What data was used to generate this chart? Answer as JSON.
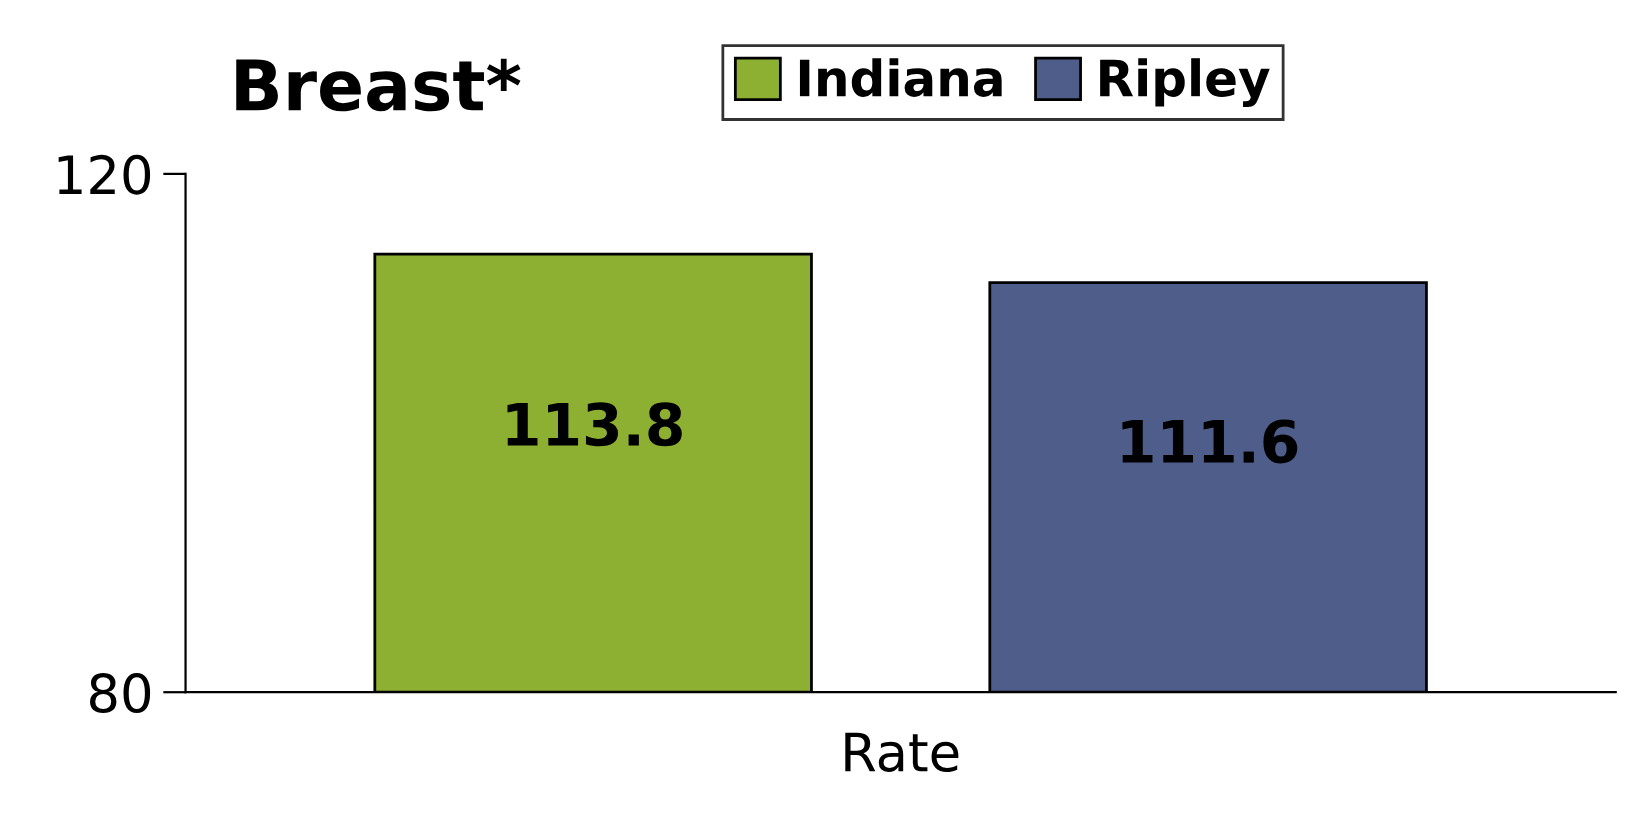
{
  "chart_data": {
    "type": "bar",
    "title": "Breast*",
    "categories": [
      "Rate"
    ],
    "series": [
      {
        "name": "Indiana",
        "color": "#8db033",
        "values": [
          113.8
        ]
      },
      {
        "name": "Ripley",
        "color": "#4e5d8a",
        "values": [
          111.6
        ]
      }
    ],
    "ylim": [
      80,
      120
    ],
    "yticks": [
      80,
      120
    ],
    "data_labels": true,
    "legend": "top",
    "grid": false
  }
}
